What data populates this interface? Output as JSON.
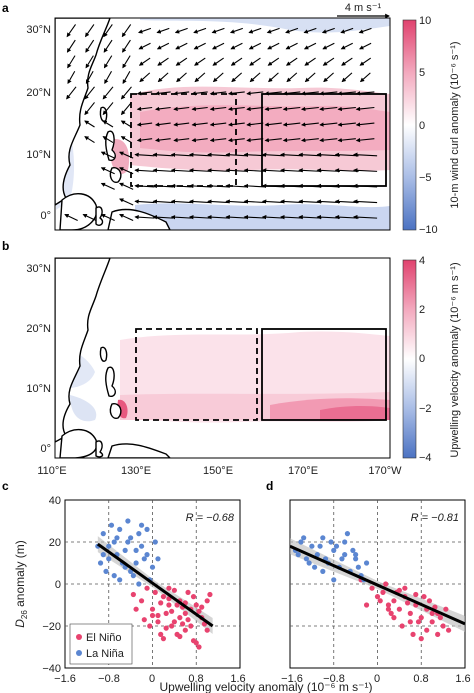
{
  "colors": {
    "positive": "#e0426e",
    "negative": "#4b72c2",
    "el_nino_dot": "#e8436f",
    "la_nina_dot": "#5b86d1",
    "fit_line": "#000000",
    "fit_band": "#b9b9b9",
    "land": "#ffffff",
    "coast": "#000000"
  },
  "chart_data": [
    {
      "id": "a",
      "panel_label": "a",
      "type": "heatmap",
      "overlay": "wind-vector-quiver",
      "title": "",
      "x_ticks": [
        "110°E",
        "130°E",
        "150°E",
        "170°E",
        "170°W"
      ],
      "y_ticks": [
        "0°",
        "10°N",
        "20°N",
        "30°N"
      ],
      "lon_range": [
        110,
        192
      ],
      "lat_range": [
        -2,
        32
      ],
      "colorbar": {
        "label": "10-m wind curl anomaly (10⁻⁶ s⁻¹)",
        "ticks": [
          "10",
          "5",
          "0",
          "−5",
          "−10"
        ],
        "tick_values": [
          10,
          5,
          0,
          -5,
          -10
        ],
        "range": [
          -10,
          10
        ]
      },
      "reference_vector": {
        "label": "4 m s⁻¹",
        "value": 4
      },
      "boxes": [
        {
          "style": "dashed",
          "lon": [
            130,
            155
          ],
          "lat": [
            5,
            20
          ]
        },
        {
          "style": "solid",
          "lon": [
            156,
            178
          ],
          "lat": [
            5,
            20
          ]
        }
      ]
    },
    {
      "id": "b",
      "panel_label": "b",
      "type": "heatmap",
      "title": "",
      "x_ticks": [
        "110°E",
        "130°E",
        "150°E",
        "170°E",
        "170°W"
      ],
      "y_ticks": [
        "0°",
        "10°N",
        "20°N",
        "30°N"
      ],
      "lon_range": [
        110,
        192
      ],
      "lat_range": [
        -2,
        32
      ],
      "colorbar": {
        "label": "Upwelling velocity anomaly (10⁻⁶ m s⁻¹)",
        "ticks": [
          "4",
          "2",
          "0",
          "−2",
          "−4"
        ],
        "tick_values": [
          4,
          2,
          0,
          -2,
          -4
        ],
        "range": [
          -4,
          4
        ]
      },
      "boxes": [
        {
          "style": "dashed",
          "lon": [
            130,
            155
          ],
          "lat": [
            5,
            20
          ]
        },
        {
          "style": "solid",
          "lon": [
            156,
            178
          ],
          "lat": [
            5,
            20
          ]
        }
      ]
    },
    {
      "id": "c",
      "panel_label": "c",
      "type": "scatter",
      "title": "",
      "xlim": [
        -1.6,
        1.6
      ],
      "ylim": [
        -40,
        40
      ],
      "x_ticks": [
        "−1.6",
        "−0.8",
        "0",
        "0.8",
        "1.6"
      ],
      "y_ticks": [
        "40",
        "20",
        "0",
        "−20",
        "−40"
      ],
      "ylabel_main": "D",
      "ylabel_sub": "26",
      "ylabel_rest": " anomaly (m)",
      "grid": true,
      "annotation": "R = −0.68",
      "fit": {
        "x": [
          -1.0,
          1.1
        ],
        "y": [
          19,
          -20
        ]
      },
      "legend": {
        "position": "bottom-left",
        "entries": [
          "El Niño",
          "La Niña"
        ]
      },
      "series": [
        {
          "name": "El Niño",
          "x": [
            -0.35,
            -0.2,
            -0.1,
            0.0,
            0.1,
            0.2,
            0.3,
            0.4,
            0.5,
            0.6,
            0.7,
            0.8,
            0.9,
            1.0,
            -0.3,
            0.05,
            0.15,
            0.25,
            0.35,
            0.45,
            0.55,
            0.65,
            0.75,
            0.85,
            0.95,
            0.2,
            0.4,
            0.6,
            0.8,
            1.0,
            0.1,
            0.3,
            0.5,
            0.7,
            -0.05,
            0.15,
            0.45,
            0.65,
            0.85,
            0.3,
            0.5,
            0.0,
            0.25,
            0.6,
            0.9,
            -0.15,
            0.35,
            0.75,
            1.05,
            0.55
          ],
          "y": [
            -5,
            -8,
            -2,
            -12,
            -15,
            -6,
            -10,
            -18,
            -8,
            -14,
            -20,
            -10,
            -16,
            -22,
            -12,
            -4,
            -9,
            -14,
            -20,
            -24,
            -11,
            -17,
            -6,
            -13,
            -19,
            -26,
            -3,
            -22,
            -28,
            -8,
            -18,
            -2,
            -16,
            -12,
            -20,
            -24,
            -10,
            -4,
            -30,
            -7,
            -25,
            -15,
            -21,
            -9,
            -11,
            -17,
            -13,
            -27,
            -5,
            -19
          ]
        },
        {
          "name": "La Niña",
          "x": [
            -1.0,
            -0.9,
            -0.8,
            -0.7,
            -0.6,
            -0.5,
            -0.4,
            -0.3,
            -0.2,
            -0.1,
            0.0,
            -0.85,
            -0.75,
            -0.65,
            -0.55,
            -0.45,
            -0.35,
            -0.25,
            -0.15,
            -0.05,
            -0.95,
            -0.7,
            -0.5,
            -0.3,
            -0.1,
            -0.8,
            -0.6,
            -0.4,
            -0.2,
            0.1,
            -0.9,
            -0.65,
            -0.45,
            -0.25,
            0.05
          ],
          "y": [
            18,
            24,
            12,
            20,
            26,
            16,
            22,
            10,
            18,
            14,
            8,
            6,
            28,
            14,
            10,
            20,
            4,
            24,
            12,
            2,
            10,
            4,
            8,
            16,
            26,
            18,
            2,
            6,
            28,
            12,
            14,
            22,
            30,
            0,
            20
          ]
        }
      ]
    },
    {
      "id": "d",
      "panel_label": "d",
      "type": "scatter",
      "title": "",
      "xlim": [
        -1.6,
        1.6
      ],
      "ylim": [
        -40,
        40
      ],
      "x_ticks": [
        "−1.6",
        "−0.8",
        "0",
        "0.8",
        "1.6"
      ],
      "y_ticks": [],
      "grid": true,
      "annotation": "R = −0.81",
      "fit": {
        "x": [
          -1.6,
          1.6
        ],
        "y": [
          18,
          -19
        ]
      },
      "series": [
        {
          "name": "El Niño",
          "x": [
            -0.3,
            -0.1,
            0.0,
            0.1,
            0.2,
            0.3,
            0.4,
            0.5,
            0.6,
            0.7,
            0.8,
            0.9,
            1.0,
            1.1,
            1.2,
            1.3,
            0.15,
            0.35,
            0.55,
            0.75,
            0.95,
            1.15,
            0.25,
            0.45,
            0.65,
            0.85,
            1.05,
            0.05,
            0.5,
            0.9,
            1.25,
            0.7,
            0.3,
            1.1,
            0.6,
            -0.2,
            0.8,
            0.4,
            1.0,
            0.2
          ],
          "y": [
            2,
            -2,
            -6,
            -4,
            -10,
            -8,
            -12,
            -6,
            -14,
            -10,
            -16,
            -12,
            -18,
            -14,
            -20,
            -22,
            0,
            -4,
            -9,
            -18,
            -8,
            -16,
            -14,
            -20,
            -24,
            -6,
            -11,
            -8,
            -2,
            -22,
            -12,
            -5,
            -16,
            -24,
            -18,
            -10,
            -26,
            -3,
            -14,
            -12
          ]
        },
        {
          "name": "La Niña",
          "x": [
            -1.5,
            -1.4,
            -1.3,
            -1.2,
            -1.1,
            -1.0,
            -0.9,
            -0.8,
            -0.7,
            -0.6,
            -0.5,
            -0.4,
            -0.3,
            -0.2,
            -1.45,
            -1.25,
            -1.05,
            -0.85,
            -0.65,
            -0.45,
            -0.25,
            -1.35,
            -1.15,
            -0.95,
            -0.75,
            -0.55,
            -0.35,
            -1.0,
            -0.8,
            -0.6,
            -0.4
          ],
          "y": [
            16,
            20,
            12,
            18,
            14,
            22,
            10,
            16,
            8,
            14,
            6,
            12,
            4,
            10,
            14,
            10,
            18,
            20,
            12,
            16,
            2,
            22,
            8,
            12,
            18,
            24,
            8,
            6,
            2,
            20,
            14
          ]
        }
      ]
    }
  ]
}
